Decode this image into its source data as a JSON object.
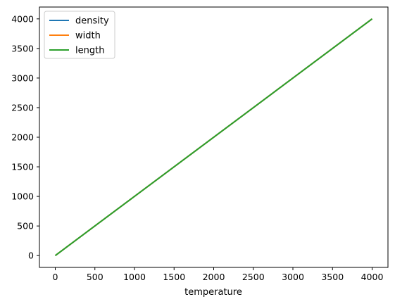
{
  "chart_data": {
    "type": "line",
    "title": "",
    "xlabel": "temperature",
    "ylabel": "",
    "x": [
      0,
      4000
    ],
    "series": [
      {
        "name": "density",
        "values": [
          0,
          4000
        ],
        "color": "#1f77b4"
      },
      {
        "name": "width",
        "values": [
          0,
          4000
        ],
        "color": "#ff7f0e"
      },
      {
        "name": "length",
        "values": [
          0,
          4000
        ],
        "color": "#2ca02c"
      }
    ],
    "xticks": [
      0,
      500,
      1000,
      1500,
      2000,
      2500,
      3000,
      3500,
      4000
    ],
    "yticks": [
      0,
      500,
      1000,
      1500,
      2000,
      2500,
      3000,
      3500,
      4000
    ],
    "xlim": [
      -200,
      4200
    ],
    "ylim": [
      -200,
      4200
    ],
    "grid": false,
    "legend": "top-left"
  }
}
